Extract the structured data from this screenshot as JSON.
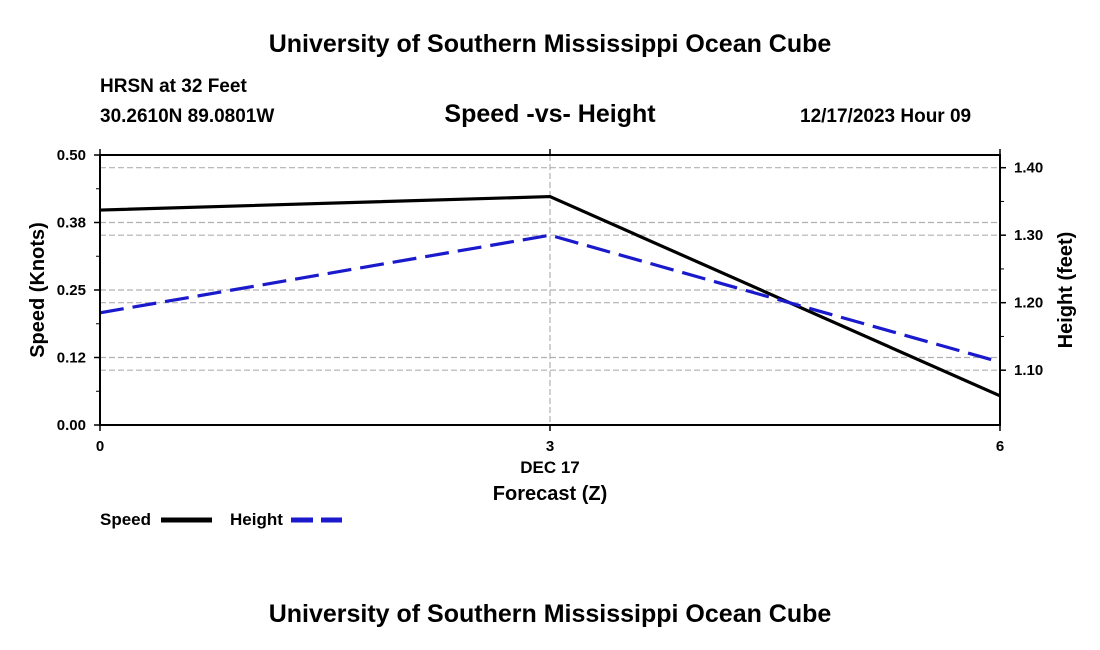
{
  "header": {
    "title": "University of Southern Mississippi Ocean Cube",
    "station": "HRSN at 32 Feet",
    "coords": "30.2610N  89.0801W",
    "date": "12/17/2023 Hour 09"
  },
  "footer": {
    "title": "University of Southern Mississippi Ocean Cube"
  },
  "chart_data": {
    "type": "line",
    "title": "Speed -vs- Height",
    "xlabel": "Forecast (Z)",
    "x_date_label": "DEC 17",
    "x": [
      0,
      3,
      6
    ],
    "x_ticks": [
      "0",
      "3",
      "6"
    ],
    "xlim": [
      0,
      6
    ],
    "y_left": {
      "label": "Speed (Knots)",
      "lim": [
        0,
        0.5
      ],
      "ticks": [
        0,
        0.125,
        0.25,
        0.375,
        0.5
      ],
      "tick_labels": [
        "0.00",
        "0.12",
        "0.25",
        "0.38",
        "0.50"
      ]
    },
    "y_right": {
      "label": "Height (feet)",
      "lim": [
        1.0188,
        1.4188
      ],
      "ticks": [
        1.1,
        1.2,
        1.3,
        1.4
      ],
      "tick_labels": [
        "1.10",
        "1.20",
        "1.30",
        "1.40"
      ]
    },
    "series": [
      {
        "name": "Speed",
        "axis": "left",
        "values": [
          0.398,
          0.423,
          0.054
        ],
        "color": "#000000",
        "dash": "solid"
      },
      {
        "name": "Height",
        "axis": "right",
        "values": [
          1.185,
          1.3,
          1.112
        ],
        "color": "#1a1acc",
        "dash": "dashed"
      }
    ],
    "legend": {
      "speed_label": "Speed",
      "height_label": "Height",
      "placement": "bottom-left"
    }
  }
}
